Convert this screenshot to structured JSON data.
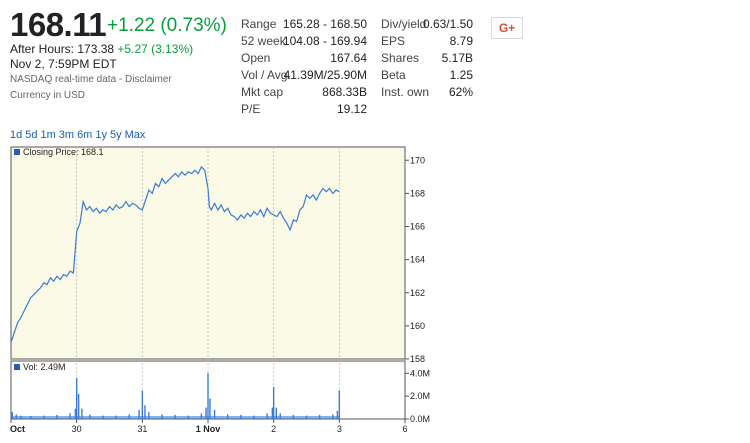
{
  "quote": {
    "price": "168.11",
    "change": "+1.22 (0.73%)",
    "after_hours_label": "After Hours:",
    "after_hours_price": "173.38",
    "after_hours_change": "+5.27 (3.13%)",
    "timestamp": "Nov 2, 7:59PM EDT",
    "source": "NASDAQ real-time data - Disclaimer",
    "currency": "Currency in USD"
  },
  "stats_left": [
    {
      "label": "Range",
      "value": "165.28 - 168.50"
    },
    {
      "label": "52 week",
      "value": "104.08 - 169.94"
    },
    {
      "label": "Open",
      "value": "167.64"
    },
    {
      "label": "Vol / Avg.",
      "value": "41.39M/25.90M"
    },
    {
      "label": "Mkt cap",
      "value": "868.33B"
    },
    {
      "label": "P/E",
      "value": "19.12"
    }
  ],
  "stats_right": [
    {
      "label": "Div/yield",
      "value": "0.63/1.50"
    },
    {
      "label": "EPS",
      "value": "8.79"
    },
    {
      "label": "Shares",
      "value": "5.17B"
    },
    {
      "label": "Beta",
      "value": "1.25"
    },
    {
      "label": "Inst. own",
      "value": "62%"
    }
  ],
  "share_button": "G+",
  "ranges": [
    "1d",
    "5d",
    "1m",
    "3m",
    "6m",
    "1y",
    "5y",
    "Max"
  ],
  "colors": {
    "green": "#0a9e3a",
    "link": "#1a5fb4",
    "line": "#3a7bd5",
    "chart_bg": "#fafae6"
  },
  "chart_data": {
    "type": "line",
    "legend": "Closing Price: 168.1",
    "ylim": [
      158,
      170.8
    ],
    "y_ticks": [
      "170",
      "168",
      "166",
      "164",
      "162",
      "160",
      "158"
    ],
    "x_ticks": [
      "Oct",
      "30",
      "31",
      "1 Nov",
      "2",
      "3",
      "6"
    ],
    "x_tick_pos": [
      0,
      1,
      2,
      3,
      4,
      5,
      6
    ],
    "xlim": [
      0,
      6
    ],
    "price_series": [
      [
        0,
        159.0
      ],
      [
        0.05,
        159.6
      ],
      [
        0.1,
        160.2
      ],
      [
        0.15,
        160.5
      ],
      [
        0.2,
        160.9
      ],
      [
        0.25,
        161.3
      ],
      [
        0.3,
        161.7
      ],
      [
        0.35,
        161.9
      ],
      [
        0.4,
        162.1
      ],
      [
        0.45,
        162.3
      ],
      [
        0.5,
        162.6
      ],
      [
        0.55,
        162.5
      ],
      [
        0.6,
        162.9
      ],
      [
        0.65,
        162.7
      ],
      [
        0.7,
        163.0
      ],
      [
        0.75,
        162.8
      ],
      [
        0.8,
        163.1
      ],
      [
        0.85,
        163.0
      ],
      [
        0.9,
        163.3
      ],
      [
        0.95,
        163.2
      ],
      [
        1.0,
        165.7
      ],
      [
        1.05,
        166.2
      ],
      [
        1.1,
        167.5
      ],
      [
        1.15,
        167.0
      ],
      [
        1.2,
        167.2
      ],
      [
        1.25,
        166.9
      ],
      [
        1.3,
        167.1
      ],
      [
        1.35,
        166.8
      ],
      [
        1.4,
        167.0
      ],
      [
        1.45,
        166.9
      ],
      [
        1.5,
        167.2
      ],
      [
        1.55,
        167.0
      ],
      [
        1.6,
        167.3
      ],
      [
        1.65,
        167.1
      ],
      [
        1.7,
        167.2
      ],
      [
        1.75,
        167.5
      ],
      [
        1.8,
        167.2
      ],
      [
        1.85,
        167.4
      ],
      [
        1.9,
        167.3
      ],
      [
        1.95,
        167.1
      ],
      [
        2.0,
        167.0
      ],
      [
        2.05,
        167.6
      ],
      [
        2.1,
        168.2
      ],
      [
        2.15,
        168.0
      ],
      [
        2.2,
        168.6
      ],
      [
        2.25,
        168.4
      ],
      [
        2.3,
        168.9
      ],
      [
        2.35,
        168.6
      ],
      [
        2.4,
        168.8
      ],
      [
        2.45,
        169.0
      ],
      [
        2.5,
        169.2
      ],
      [
        2.55,
        169.0
      ],
      [
        2.6,
        169.3
      ],
      [
        2.65,
        169.1
      ],
      [
        2.7,
        169.3
      ],
      [
        2.75,
        169.2
      ],
      [
        2.8,
        169.4
      ],
      [
        2.85,
        169.2
      ],
      [
        2.9,
        169.6
      ],
      [
        2.95,
        169.4
      ],
      [
        3.0,
        168.3
      ],
      [
        3.02,
        167.2
      ],
      [
        3.05,
        167.0
      ],
      [
        3.1,
        167.4
      ],
      [
        3.15,
        167.0
      ],
      [
        3.2,
        167.3
      ],
      [
        3.25,
        166.9
      ],
      [
        3.3,
        167.1
      ],
      [
        3.35,
        166.7
      ],
      [
        3.4,
        166.6
      ],
      [
        3.45,
        166.4
      ],
      [
        3.5,
        166.7
      ],
      [
        3.55,
        166.5
      ],
      [
        3.6,
        166.8
      ],
      [
        3.65,
        166.6
      ],
      [
        3.7,
        166.9
      ],
      [
        3.75,
        166.7
      ],
      [
        3.8,
        167.0
      ],
      [
        3.85,
        166.6
      ],
      [
        3.9,
        167.1
      ],
      [
        3.95,
        166.8
      ],
      [
        4.0,
        166.7
      ],
      [
        4.05,
        166.6
      ],
      [
        4.1,
        166.9
      ],
      [
        4.15,
        166.5
      ],
      [
        4.2,
        166.2
      ],
      [
        4.25,
        165.8
      ],
      [
        4.3,
        166.4
      ],
      [
        4.35,
        166.3
      ],
      [
        4.4,
        167.0
      ],
      [
        4.45,
        167.2
      ],
      [
        4.5,
        167.9
      ],
      [
        4.55,
        167.7
      ],
      [
        4.6,
        167.9
      ],
      [
        4.65,
        167.6
      ],
      [
        4.7,
        168.0
      ],
      [
        4.75,
        168.3
      ],
      [
        4.8,
        168.1
      ],
      [
        4.85,
        168.3
      ],
      [
        4.9,
        168.0
      ],
      [
        4.95,
        168.2
      ],
      [
        5.0,
        168.1
      ]
    ],
    "vol_legend": "Vol: 2.49M",
    "vol_ylim": [
      0,
      4.2
    ],
    "vol_ticks": [
      "4.0M",
      "2.0M",
      "0.0M"
    ],
    "vol_series": [
      [
        0.02,
        0.6
      ],
      [
        0.08,
        0.4
      ],
      [
        0.15,
        0.3
      ],
      [
        0.3,
        0.25
      ],
      [
        0.5,
        0.3
      ],
      [
        0.7,
        0.35
      ],
      [
        0.9,
        0.5
      ],
      [
        0.98,
        0.9
      ],
      [
        1.0,
        3.6
      ],
      [
        1.03,
        2.2
      ],
      [
        1.08,
        0.9
      ],
      [
        1.2,
        0.4
      ],
      [
        1.4,
        0.3
      ],
      [
        1.6,
        0.3
      ],
      [
        1.8,
        0.4
      ],
      [
        1.95,
        0.8
      ],
      [
        2.0,
        2.5
      ],
      [
        2.04,
        1.2
      ],
      [
        2.1,
        0.6
      ],
      [
        2.3,
        0.4
      ],
      [
        2.5,
        0.35
      ],
      [
        2.7,
        0.3
      ],
      [
        2.9,
        0.5
      ],
      [
        2.97,
        1.0
      ],
      [
        3.0,
        4.0
      ],
      [
        3.03,
        1.8
      ],
      [
        3.1,
        0.8
      ],
      [
        3.3,
        0.4
      ],
      [
        3.5,
        0.35
      ],
      [
        3.7,
        0.3
      ],
      [
        3.9,
        0.5
      ],
      [
        3.98,
        1.0
      ],
      [
        4.0,
        2.8
      ],
      [
        4.04,
        1.0
      ],
      [
        4.1,
        0.5
      ],
      [
        4.3,
        0.35
      ],
      [
        4.5,
        0.3
      ],
      [
        4.7,
        0.35
      ],
      [
        4.9,
        0.4
      ],
      [
        4.97,
        0.7
      ],
      [
        5.0,
        2.5
      ]
    ]
  }
}
